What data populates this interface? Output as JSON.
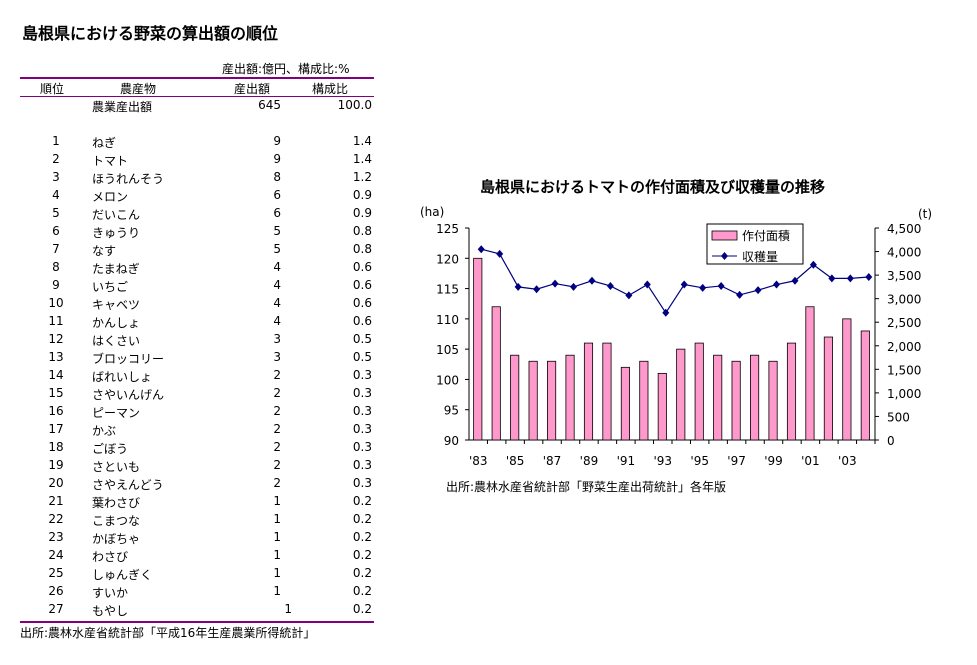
{
  "table": {
    "title": "島根県における野菜の算出額の順位",
    "unit_note": "産出額:億円、構成比:%",
    "headers": [
      "順位",
      "農産物",
      "産出額",
      "構成比"
    ],
    "total": {
      "name": "農業産出額",
      "value": "645",
      "ratio": "100.0"
    },
    "rows": [
      [
        "1",
        "ねぎ",
        "9",
        "1.4"
      ],
      [
        "2",
        "トマト",
        "9",
        "1.4"
      ],
      [
        "3",
        "ほうれんそう",
        "8",
        "1.2"
      ],
      [
        "4",
        "メロン",
        "6",
        "0.9"
      ],
      [
        "5",
        "だいこん",
        "6",
        "0.9"
      ],
      [
        "6",
        "きゅうり",
        "5",
        "0.8"
      ],
      [
        "7",
        "なす",
        "5",
        "0.8"
      ],
      [
        "8",
        "たまねぎ",
        "4",
        "0.6"
      ],
      [
        "9",
        "いちご",
        "4",
        "0.6"
      ],
      [
        "10",
        "キャベツ",
        "4",
        "0.6"
      ],
      [
        "11",
        "かんしょ",
        "4",
        "0.6"
      ],
      [
        "12",
        "はくさい",
        "3",
        "0.5"
      ],
      [
        "13",
        "ブロッコリー",
        "3",
        "0.5"
      ],
      [
        "14",
        "ばれいしょ",
        "2",
        "0.3"
      ],
      [
        "15",
        "さやいんげん",
        "2",
        "0.3"
      ],
      [
        "16",
        "ピーマン",
        "2",
        "0.3"
      ],
      [
        "17",
        "かぶ",
        "2",
        "0.3"
      ],
      [
        "18",
        "ごぼう",
        "2",
        "0.3"
      ],
      [
        "19",
        "さといも",
        "2",
        "0.3"
      ],
      [
        "20",
        "さやえんどう",
        "2",
        "0.3"
      ],
      [
        "21",
        "葉わさび",
        "1",
        "0.2"
      ],
      [
        "22",
        "こまつな",
        "1",
        "0.2"
      ],
      [
        "23",
        "かぼちゃ",
        "1",
        "0.2"
      ],
      [
        "24",
        "わさび",
        "1",
        "0.2"
      ],
      [
        "25",
        "しゅんぎく",
        "1",
        "0.2"
      ],
      [
        "26",
        "すいか",
        "1",
        "0.2"
      ],
      [
        "27",
        "もやし",
        "1",
        "0.2"
      ]
    ],
    "source": "出所:農林水産省統計部「平成16年生産農業所得統計」",
    "line_color": "#800080"
  },
  "chart_data": {
    "type": "bar+line",
    "title": "島根県におけるトマトの作付面積及び収穫量の推移",
    "source": "出所:農林水産省統計部「野菜生産出荷統計」各年版",
    "ylabel_left": "(ha)",
    "ylabel_right": "(t)",
    "ylim_left": [
      90,
      125
    ],
    "yticks_left": [
      "90",
      "95",
      "100",
      "105",
      "110",
      "115",
      "120",
      "125"
    ],
    "ylim_right": [
      0,
      4500
    ],
    "yticks_right": [
      "0",
      "500",
      "1,000",
      "1,500",
      "2,000",
      "2,500",
      "3,000",
      "3,500",
      "4,000",
      "4,500"
    ],
    "categories": [
      "1983",
      "1984",
      "1985",
      "1986",
      "1987",
      "1988",
      "1989",
      "1990",
      "1991",
      "1992",
      "1993",
      "1994",
      "1995",
      "1996",
      "1997",
      "1998",
      "1999",
      "2000",
      "2001",
      "2002",
      "2003",
      "2004"
    ],
    "xtick_labels": [
      "'83",
      "",
      "'85",
      "",
      "'87",
      "",
      "'89",
      "",
      "'91",
      "",
      "'93",
      "",
      "'95",
      "",
      "'97",
      "",
      "'99",
      "",
      "'01",
      "",
      "'03",
      ""
    ],
    "series": [
      {
        "name": "作付面積",
        "type": "bar",
        "axis": "left",
        "color": "#ff99cc",
        "values": [
          120,
          112,
          104,
          103,
          103,
          104,
          106,
          106,
          102,
          103,
          101,
          105,
          106,
          104,
          103,
          104,
          103,
          106,
          112,
          107,
          110,
          108
        ]
      },
      {
        "name": "収穫量",
        "type": "line",
        "axis": "right",
        "color": "#000080",
        "values": [
          4050,
          3950,
          3250,
          3200,
          3320,
          3250,
          3380,
          3270,
          3070,
          3300,
          2700,
          3300,
          3230,
          3270,
          3080,
          3180,
          3300,
          3380,
          3720,
          3430,
          3430,
          3460
        ]
      }
    ],
    "legend": "top-right inside"
  }
}
